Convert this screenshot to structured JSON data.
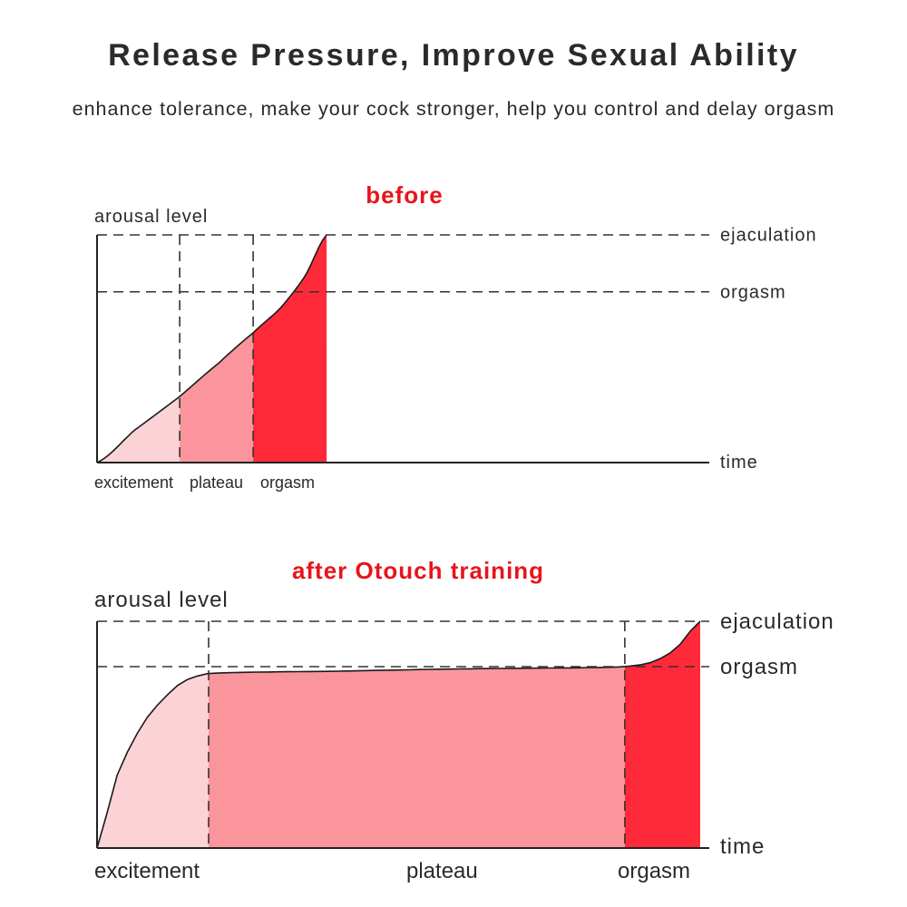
{
  "header": {
    "title": "Release Pressure, Improve Sexual Ability",
    "subtitle": "enhance tolerance, make your cock stronger, help you control and delay orgasm"
  },
  "colors": {
    "title_red": "#e8141b",
    "excitement_fill": "#fbd3d6",
    "plateau_fill": "#fb959d",
    "orgasm_fill": "#fe2a3a",
    "line": "#1a1a1a"
  },
  "chart_data": [
    {
      "type": "area",
      "title": "before",
      "ylabel": "arousal level",
      "xlabel": "time",
      "xlim": [
        0,
        100
      ],
      "ylim": [
        0,
        100
      ],
      "reference_lines": [
        {
          "label": "ejaculation",
          "y": 100
        },
        {
          "label": "orgasm",
          "y": 75
        }
      ],
      "phases": [
        {
          "label": "excitement",
          "start": 0,
          "end": 13.5,
          "color": "#fbd3d6"
        },
        {
          "label": "plateau",
          "start": 13.5,
          "end": 25.5,
          "color": "#fb959d"
        },
        {
          "label": "orgasm",
          "start": 25.5,
          "end": 37.5,
          "color": "#fe2a3a"
        }
      ],
      "series": [
        {
          "x": [
            0,
            6,
            13.5,
            20,
            25.5,
            30,
            34,
            37.5
          ],
          "y": [
            0,
            14,
            29,
            44,
            57,
            68,
            82,
            100
          ]
        }
      ]
    },
    {
      "type": "area",
      "title": "after Otouch training",
      "ylabel": "arousal level",
      "xlabel": "time",
      "xlim": [
        0,
        100
      ],
      "ylim": [
        0,
        100
      ],
      "reference_lines": [
        {
          "label": "ejaculation",
          "y": 100
        },
        {
          "label": "orgasm",
          "y": 80
        }
      ],
      "phases": [
        {
          "label": "excitement",
          "start": 0,
          "end": 18.5,
          "color": "#fbd3d6"
        },
        {
          "label": "plateau",
          "start": 18.5,
          "end": 87.5,
          "color": "#fb959d"
        },
        {
          "label": "orgasm",
          "start": 87.5,
          "end": 100,
          "color": "#fe2a3a"
        }
      ],
      "series": [
        {
          "x": [
            0,
            3,
            7,
            10,
            14,
            18.5,
            40,
            60,
            80,
            87.5,
            92,
            96,
            100
          ],
          "y": [
            0,
            30,
            52,
            63,
            73,
            77,
            78,
            79,
            79.5,
            80,
            82,
            88,
            100
          ]
        }
      ]
    }
  ]
}
